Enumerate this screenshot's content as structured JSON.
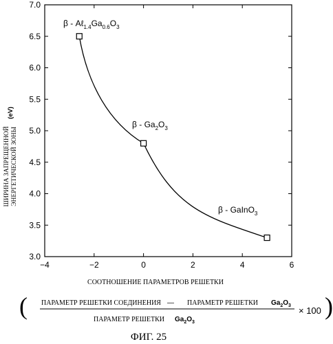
{
  "chart_data": {
    "type": "scatter",
    "ylabel_line1": "ШИРИНА ЗАПРЕЩЕННОЙ",
    "ylabel_line2": "ЭНЕРГЕТИЧЕСКОЙ ЗОНЫ",
    "ylabel_unit": "(eV)",
    "xlabel": "СООТНОШЕНИЕ ПАРАМЕТРОВ РЕШЕТКИ",
    "xlim": [
      -4,
      6
    ],
    "ylim": [
      3.0,
      7.0
    ],
    "xticks": [
      "−4",
      "−2",
      "0",
      "2",
      "4",
      "6"
    ],
    "yticks": [
      "3.0",
      "3.5",
      "4.0",
      "4.5",
      "5.0",
      "5.5",
      "6.0",
      "6.5",
      "7.0"
    ],
    "grid": false,
    "series": [
      {
        "x": [
          -2.6,
          0.0,
          5.0
        ],
        "y": [
          6.5,
          4.8,
          3.3
        ]
      }
    ],
    "annotations": [
      {
        "prefix": "β - Aℓ",
        "sub1": "1.4",
        "mid": "Ga",
        "sub2": "0.6",
        "suffix": "O",
        "sub3": "3"
      },
      {
        "prefix": "β - Ga",
        "sub1": "2",
        "suffix": "O",
        "sub3": "3"
      },
      {
        "prefix": "β - GaInO",
        "sub3": "3"
      }
    ]
  },
  "formula": {
    "numerator_left": "ПАРАМЕТР РЕШЕТКИ СОЕДИНЕНИЯ",
    "minus": "—",
    "numerator_right": "ПАРАМЕТР РЕШЕТКИ",
    "numerator_chem": "Ga",
    "numerator_chem_sub1": "2",
    "numerator_chem_o": "O",
    "numerator_chem_sub2": "3",
    "denominator": "ПАРАМЕТР РЕШЕТКИ",
    "denominator_chem": "Ga",
    "denominator_chem_sub1": "2",
    "denominator_chem_o": "O",
    "denominator_chem_sub2": "3",
    "multiplier": "× 100"
  },
  "caption": "ФИГ. 25"
}
